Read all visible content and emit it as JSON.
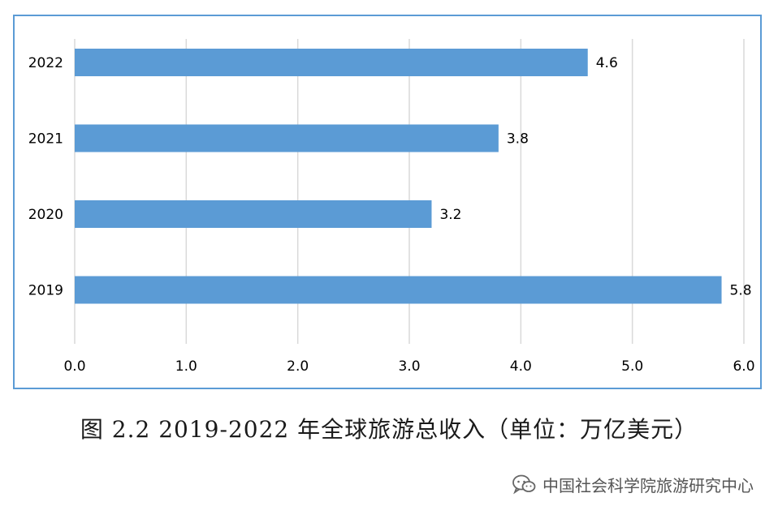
{
  "chart_data": {
    "type": "bar",
    "orientation": "horizontal",
    "categories": [
      "2022",
      "2021",
      "2020",
      "2019"
    ],
    "values": [
      4.6,
      3.8,
      3.2,
      5.8
    ],
    "data_labels": [
      "4.6",
      "3.8",
      "3.2",
      "5.8"
    ],
    "x_ticks": [
      "0.0",
      "1.0",
      "2.0",
      "3.0",
      "4.0",
      "5.0",
      "6.0"
    ],
    "xlim": [
      0,
      6
    ],
    "grid": "vertical",
    "bar_color": "#5b9bd5",
    "frame_color": "#5b9bd5"
  },
  "caption": "图 2.2 2019-2022 年全球旅游总收入（单位：万亿美元）",
  "watermark": {
    "icon": "wechat-icon",
    "text": "中国社会科学院旅游研究中心"
  }
}
